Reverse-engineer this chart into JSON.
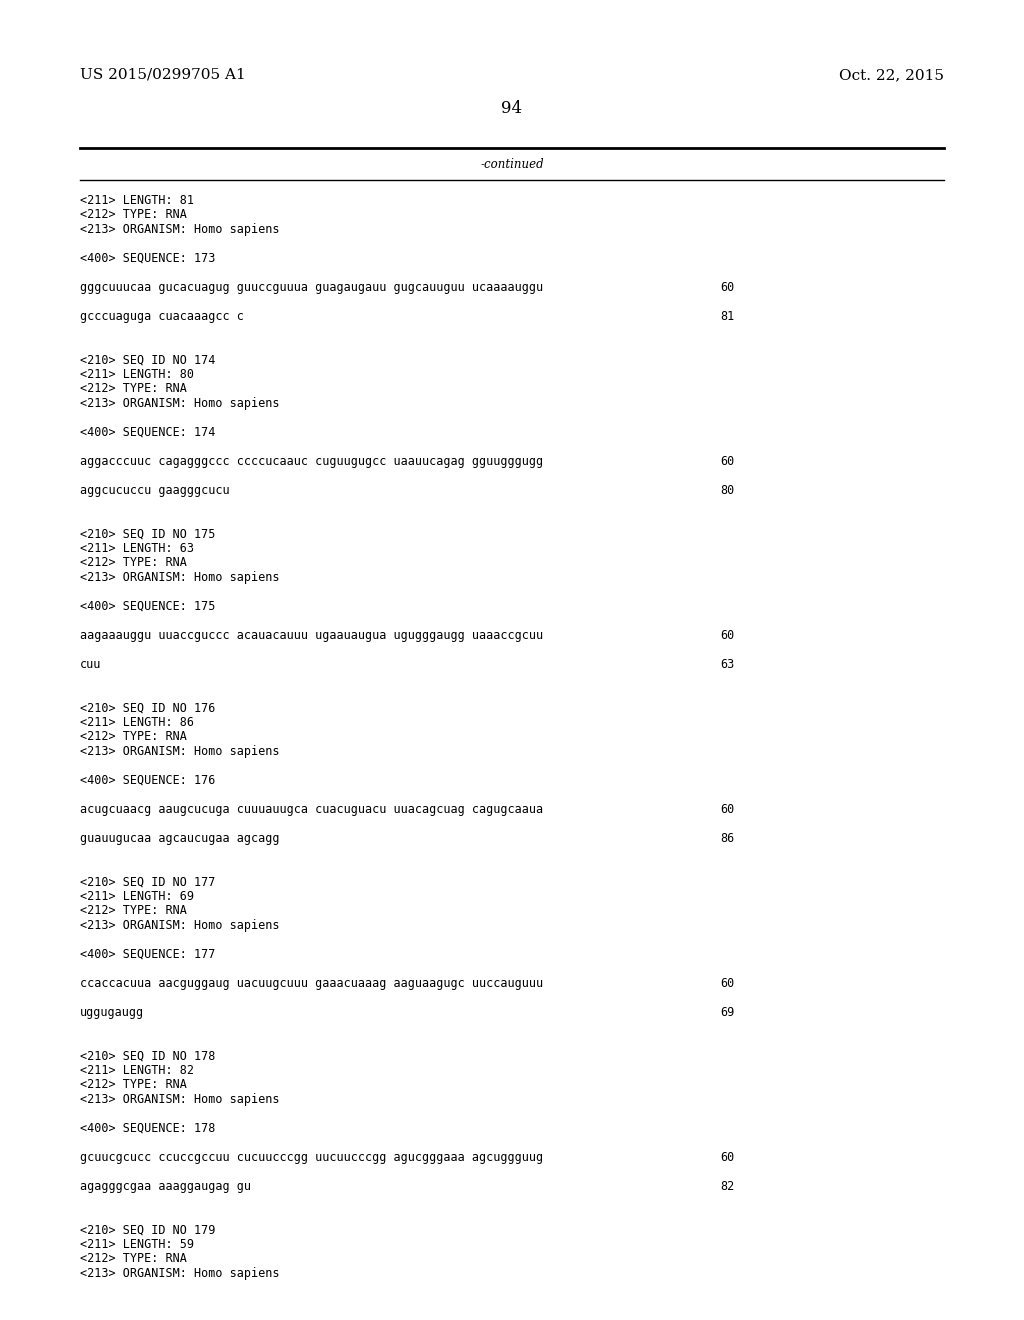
{
  "bg_color": "#ffffff",
  "header_left": "US 2015/0299705 A1",
  "header_right": "Oct. 22, 2015",
  "page_number": "94",
  "continued_label": "-continued",
  "font_size_header": 11,
  "font_size_body": 8.5,
  "font_size_page": 12,
  "lines": [
    {
      "text": "<211> LENGTH: 81",
      "style": "mono"
    },
    {
      "text": "<212> TYPE: RNA",
      "style": "mono"
    },
    {
      "text": "<213> ORGANISM: Homo sapiens",
      "style": "mono"
    },
    {
      "text": "",
      "style": "mono"
    },
    {
      "text": "<400> SEQUENCE: 173",
      "style": "mono"
    },
    {
      "text": "",
      "style": "mono"
    },
    {
      "text": "gggcuuucaa gucacuagug guuccguuua guagaugauu gugcauuguu ucaaaauggu",
      "style": "mono",
      "num": "60"
    },
    {
      "text": "",
      "style": "mono"
    },
    {
      "text": "gcccuaguga cuacaaagcc c",
      "style": "mono",
      "num": "81"
    },
    {
      "text": "",
      "style": "mono"
    },
    {
      "text": "",
      "style": "mono"
    },
    {
      "text": "<210> SEQ ID NO 174",
      "style": "mono"
    },
    {
      "text": "<211> LENGTH: 80",
      "style": "mono"
    },
    {
      "text": "<212> TYPE: RNA",
      "style": "mono"
    },
    {
      "text": "<213> ORGANISM: Homo sapiens",
      "style": "mono"
    },
    {
      "text": "",
      "style": "mono"
    },
    {
      "text": "<400> SEQUENCE: 174",
      "style": "mono"
    },
    {
      "text": "",
      "style": "mono"
    },
    {
      "text": "aggacccuuc cagagggccc ccccucaauc cuguugugcc uaauucagag gguugggugg",
      "style": "mono",
      "num": "60"
    },
    {
      "text": "",
      "style": "mono"
    },
    {
      "text": "aggcucuccu gaagggcucu",
      "style": "mono",
      "num": "80"
    },
    {
      "text": "",
      "style": "mono"
    },
    {
      "text": "",
      "style": "mono"
    },
    {
      "text": "<210> SEQ ID NO 175",
      "style": "mono"
    },
    {
      "text": "<211> LENGTH: 63",
      "style": "mono"
    },
    {
      "text": "<212> TYPE: RNA",
      "style": "mono"
    },
    {
      "text": "<213> ORGANISM: Homo sapiens",
      "style": "mono"
    },
    {
      "text": "",
      "style": "mono"
    },
    {
      "text": "<400> SEQUENCE: 175",
      "style": "mono"
    },
    {
      "text": "",
      "style": "mono"
    },
    {
      "text": "aagaaauggu uuaccguccc acauacauuu ugaauaugua ugugggaugg uaaaccgcuu",
      "style": "mono",
      "num": "60"
    },
    {
      "text": "",
      "style": "mono"
    },
    {
      "text": "cuu",
      "style": "mono",
      "num": "63"
    },
    {
      "text": "",
      "style": "mono"
    },
    {
      "text": "",
      "style": "mono"
    },
    {
      "text": "<210> SEQ ID NO 176",
      "style": "mono"
    },
    {
      "text": "<211> LENGTH: 86",
      "style": "mono"
    },
    {
      "text": "<212> TYPE: RNA",
      "style": "mono"
    },
    {
      "text": "<213> ORGANISM: Homo sapiens",
      "style": "mono"
    },
    {
      "text": "",
      "style": "mono"
    },
    {
      "text": "<400> SEQUENCE: 176",
      "style": "mono"
    },
    {
      "text": "",
      "style": "mono"
    },
    {
      "text": "acugcuaacg aaugcucuga cuuuauugca cuacuguacu uuacagcuag cagugcaaua",
      "style": "mono",
      "num": "60"
    },
    {
      "text": "",
      "style": "mono"
    },
    {
      "text": "guauugucaa agcaucugaa agcagg",
      "style": "mono",
      "num": "86"
    },
    {
      "text": "",
      "style": "mono"
    },
    {
      "text": "",
      "style": "mono"
    },
    {
      "text": "<210> SEQ ID NO 177",
      "style": "mono"
    },
    {
      "text": "<211> LENGTH: 69",
      "style": "mono"
    },
    {
      "text": "<212> TYPE: RNA",
      "style": "mono"
    },
    {
      "text": "<213> ORGANISM: Homo sapiens",
      "style": "mono"
    },
    {
      "text": "",
      "style": "mono"
    },
    {
      "text": "<400> SEQUENCE: 177",
      "style": "mono"
    },
    {
      "text": "",
      "style": "mono"
    },
    {
      "text": "ccaccacuua aacguggaug uacuugcuuu gaaacuaaag aaguaagugc uuccauguuu",
      "style": "mono",
      "num": "60"
    },
    {
      "text": "",
      "style": "mono"
    },
    {
      "text": "uggugaugg",
      "style": "mono",
      "num": "69"
    },
    {
      "text": "",
      "style": "mono"
    },
    {
      "text": "",
      "style": "mono"
    },
    {
      "text": "<210> SEQ ID NO 178",
      "style": "mono"
    },
    {
      "text": "<211> LENGTH: 82",
      "style": "mono"
    },
    {
      "text": "<212> TYPE: RNA",
      "style": "mono"
    },
    {
      "text": "<213> ORGANISM: Homo sapiens",
      "style": "mono"
    },
    {
      "text": "",
      "style": "mono"
    },
    {
      "text": "<400> SEQUENCE: 178",
      "style": "mono"
    },
    {
      "text": "",
      "style": "mono"
    },
    {
      "text": "gcuucgcucc ccuccgccuu cucuucccgg uucuucccgg agucgggaaa agcuggguug",
      "style": "mono",
      "num": "60"
    },
    {
      "text": "",
      "style": "mono"
    },
    {
      "text": "agagggcgaa aaaggaugag gu",
      "style": "mono",
      "num": "82"
    },
    {
      "text": "",
      "style": "mono"
    },
    {
      "text": "",
      "style": "mono"
    },
    {
      "text": "<210> SEQ ID NO 179",
      "style": "mono"
    },
    {
      "text": "<211> LENGTH: 59",
      "style": "mono"
    },
    {
      "text": "<212> TYPE: RNA",
      "style": "mono"
    },
    {
      "text": "<213> ORGANISM: Homo sapiens",
      "style": "mono"
    }
  ]
}
